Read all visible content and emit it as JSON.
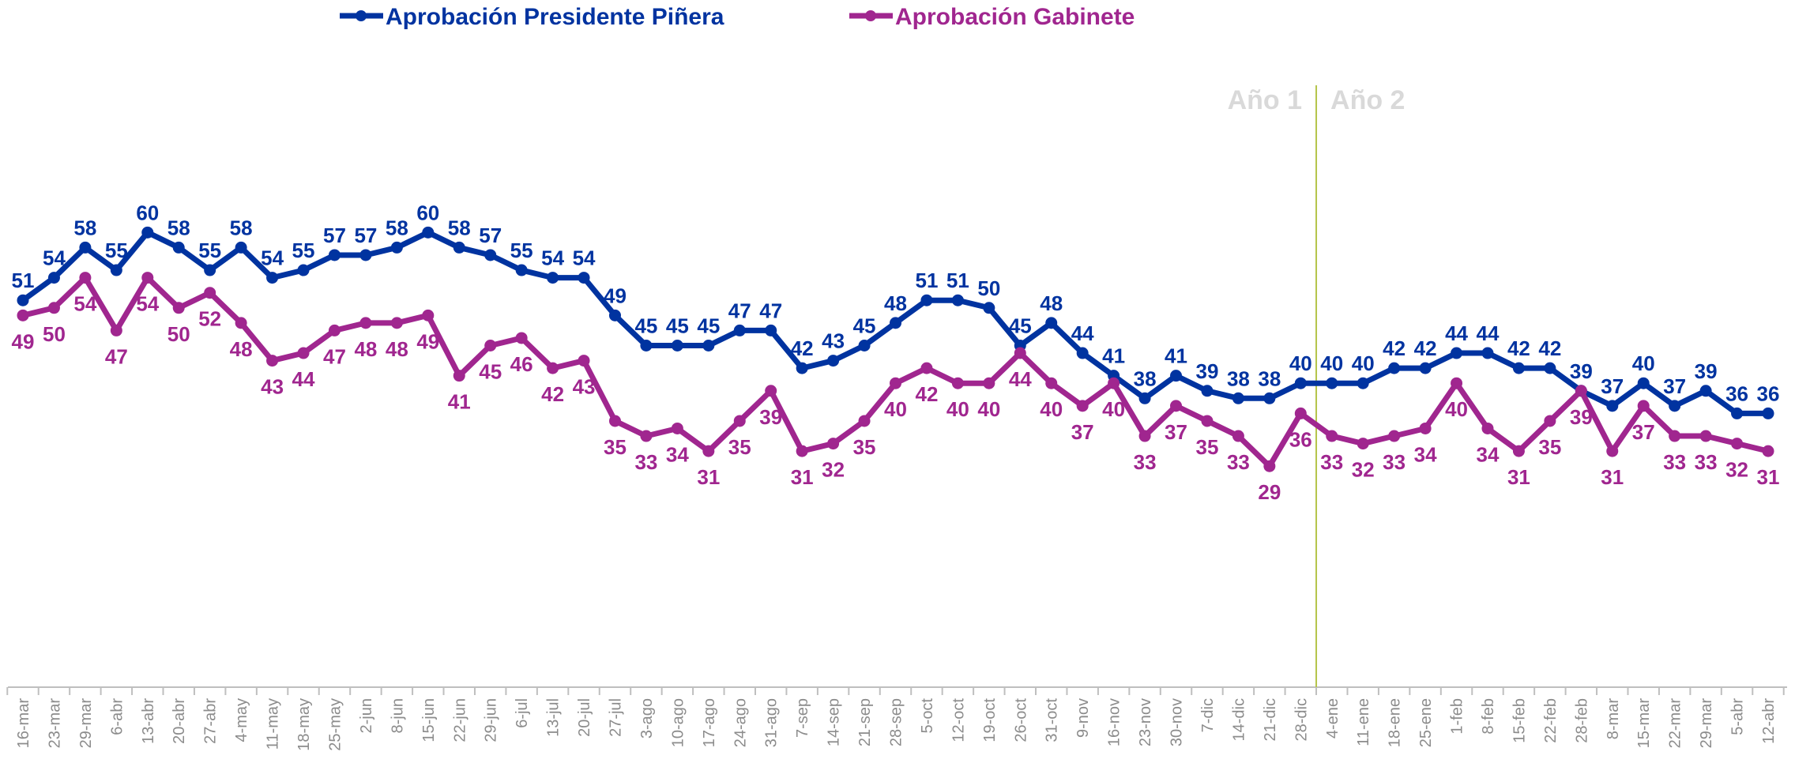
{
  "chart_data": {
    "type": "line",
    "categories": [
      "16-mar",
      "23-mar",
      "29-mar",
      "6-abr",
      "13-abr",
      "20-abr",
      "27-abr",
      "4-may",
      "11-may",
      "18-may",
      "25-may",
      "2-jun",
      "8-jun",
      "15-jun",
      "22-jun",
      "29-jun",
      "6-jul",
      "13-jul",
      "20-jul",
      "27-jul",
      "3-ago",
      "10-ago",
      "17-ago",
      "24-ago",
      "31-ago",
      "7-sep",
      "14-sep",
      "21-sep",
      "28-sep",
      "5-oct",
      "12-oct",
      "19-oct",
      "26-oct",
      "31-oct",
      "9-nov",
      "16-nov",
      "23-nov",
      "30-nov",
      "7-dic",
      "14-dic",
      "21-dic",
      "28-dic",
      "4-ene",
      "11-ene",
      "18-ene",
      "25-ene",
      "1-feb",
      "8-feb",
      "15-feb",
      "22-feb",
      "28-feb",
      "8-mar",
      "15-mar",
      "22-mar",
      "29-mar",
      "5-abr",
      "12-abr"
    ],
    "series": [
      {
        "name": "Aprobación Presidente Piñera",
        "color": "#0033a0",
        "values": [
          51,
          54,
          58,
          55,
          60,
          58,
          55,
          58,
          54,
          55,
          57,
          57,
          58,
          60,
          58,
          57,
          55,
          54,
          54,
          49,
          45,
          45,
          45,
          47,
          47,
          42,
          43,
          45,
          48,
          51,
          51,
          50,
          45,
          48,
          44,
          41,
          38,
          41,
          39,
          38,
          38,
          40,
          40,
          40,
          42,
          42,
          44,
          44,
          42,
          42,
          39,
          37,
          40,
          37,
          39,
          36,
          36
        ]
      },
      {
        "name": "Aprobación Gabinete",
        "color": "#a0268f",
        "values": [
          49,
          50,
          54,
          47,
          54,
          50,
          52,
          48,
          43,
          44,
          47,
          48,
          48,
          49,
          41,
          45,
          46,
          42,
          43,
          35,
          33,
          34,
          31,
          35,
          39,
          31,
          32,
          35,
          40,
          42,
          40,
          40,
          44,
          40,
          37,
          40,
          33,
          37,
          35,
          33,
          29,
          36,
          33,
          32,
          33,
          34,
          40,
          34,
          31,
          35,
          39,
          31,
          37,
          33,
          33,
          32,
          31
        ]
      }
    ],
    "annotations": [
      "Año 1",
      "Año 2"
    ],
    "ylim": [
      0,
      90
    ],
    "legend": "top"
  }
}
